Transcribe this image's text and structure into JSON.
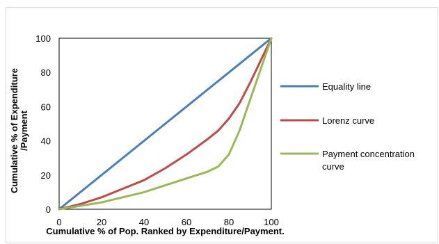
{
  "chart_data": {
    "type": "line",
    "title": "",
    "xlabel": "Cumulative % of Pop. Ranked by Expenditure/Payment.",
    "ylabel_lines": [
      "Cumulative % of Expenditure",
      "/Payment"
    ],
    "xlim": [
      0,
      100
    ],
    "ylim": [
      0,
      100
    ],
    "xticks": [
      0,
      20,
      40,
      60,
      80,
      100
    ],
    "yticks": [
      0,
      20,
      40,
      60,
      80,
      100
    ],
    "grid": false,
    "legend_position": "right",
    "series": [
      {
        "name": "Equality line",
        "label_lines": [
          "Equality line"
        ],
        "color": "#4a7ebb",
        "x": [
          0,
          100
        ],
        "y": [
          0,
          100
        ]
      },
      {
        "name": "Lorenz curve",
        "label_lines": [
          "Lorenz curve"
        ],
        "color": "#be4b48",
        "x": [
          0,
          10,
          20,
          30,
          40,
          50,
          60,
          70,
          75,
          80,
          85,
          90,
          95,
          100
        ],
        "y": [
          0,
          3,
          7,
          12,
          17,
          24,
          32,
          41,
          46,
          53,
          62,
          74,
          87,
          100
        ]
      },
      {
        "name": "Payment concentration curve",
        "label_lines": [
          "Payment concentration",
          "curve"
        ],
        "color": "#98b954",
        "x": [
          0,
          10,
          20,
          30,
          40,
          50,
          60,
          65,
          70,
          75,
          80,
          85,
          90,
          95,
          100
        ],
        "y": [
          0,
          2,
          4,
          7,
          10,
          14,
          18,
          20,
          22,
          25,
          32,
          46,
          64,
          82,
          100
        ]
      }
    ]
  }
}
